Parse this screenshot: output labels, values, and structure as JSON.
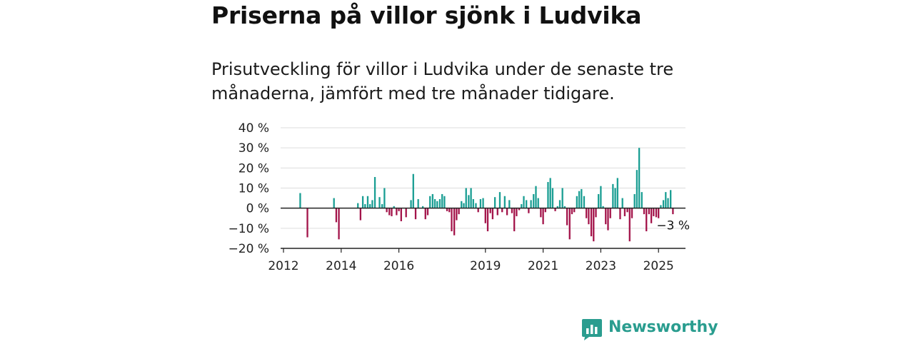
{
  "chart_data": {
    "type": "bar",
    "title": "Priserna på villor sjönk i Ludvika",
    "subtitle": "Prisutveckling för villor i Ludvika under de senaste tre månaderna, jämfört med tre månader tidigare.",
    "xlabel": "",
    "ylabel": "",
    "ylim": [
      -20,
      40
    ],
    "yticks": [
      40,
      30,
      20,
      10,
      0,
      -10,
      -20
    ],
    "ytick_labels": [
      "40 %",
      "30 %",
      "20 %",
      "10 %",
      "0 %",
      "−10 %",
      "−20 %"
    ],
    "xticks": [
      2012,
      2014,
      2016,
      2019,
      2021,
      2023,
      2025
    ],
    "xtick_labels": [
      "2012",
      "2014",
      "2016",
      "2019",
      "2021",
      "2023",
      "2025"
    ],
    "grid": true,
    "legend": "none",
    "colors": {
      "positive": "#1a9e93",
      "negative": "#a3144a"
    },
    "end_label": "−3 %",
    "values": [
      [
        2012.58,
        7.5
      ],
      [
        2012.83,
        -14.5
      ],
      [
        2013.75,
        5
      ],
      [
        2013.83,
        -7
      ],
      [
        2013.92,
        -15.5
      ],
      [
        2014.58,
        2.5
      ],
      [
        2014.67,
        -6
      ],
      [
        2014.75,
        6
      ],
      [
        2014.83,
        2
      ],
      [
        2014.92,
        6
      ],
      [
        2015.0,
        2
      ],
      [
        2015.08,
        4
      ],
      [
        2015.17,
        15.5
      ],
      [
        2015.33,
        5.5
      ],
      [
        2015.42,
        2
      ],
      [
        2015.5,
        10
      ],
      [
        2015.58,
        -2
      ],
      [
        2015.67,
        -3.5
      ],
      [
        2015.75,
        -4
      ],
      [
        2015.83,
        1
      ],
      [
        2015.92,
        -3.5
      ],
      [
        2016.0,
        -1.5
      ],
      [
        2016.08,
        -6.5
      ],
      [
        2016.25,
        -4.5
      ],
      [
        2016.42,
        4
      ],
      [
        2016.5,
        17
      ],
      [
        2016.58,
        -5.5
      ],
      [
        2016.67,
        4.5
      ],
      [
        2016.83,
        1
      ],
      [
        2016.92,
        -5.5
      ],
      [
        2017.0,
        -3.5
      ],
      [
        2017.08,
        6
      ],
      [
        2017.17,
        7
      ],
      [
        2017.25,
        4.5
      ],
      [
        2017.33,
        3.5
      ],
      [
        2017.42,
        4.5
      ],
      [
        2017.5,
        7
      ],
      [
        2017.58,
        6
      ],
      [
        2017.67,
        -1.5
      ],
      [
        2017.75,
        -2
      ],
      [
        2017.83,
        -11.5
      ],
      [
        2017.92,
        -13.5
      ],
      [
        2018.0,
        -6
      ],
      [
        2018.08,
        -3
      ],
      [
        2018.17,
        3.5
      ],
      [
        2018.25,
        2.5
      ],
      [
        2018.33,
        10
      ],
      [
        2018.42,
        6.5
      ],
      [
        2018.5,
        10
      ],
      [
        2018.58,
        4.5
      ],
      [
        2018.67,
        2.5
      ],
      [
        2018.75,
        -2
      ],
      [
        2018.83,
        4.5
      ],
      [
        2018.92,
        5
      ],
      [
        2019.0,
        -7.5
      ],
      [
        2019.08,
        -11.5
      ],
      [
        2019.17,
        -2.5
      ],
      [
        2019.25,
        -5.5
      ],
      [
        2019.33,
        5.5
      ],
      [
        2019.42,
        -3.5
      ],
      [
        2019.5,
        8
      ],
      [
        2019.58,
        -2
      ],
      [
        2019.67,
        6
      ],
      [
        2019.75,
        -3.5
      ],
      [
        2019.83,
        4
      ],
      [
        2019.92,
        -2.5
      ],
      [
        2020.0,
        -11.5
      ],
      [
        2020.08,
        -4
      ],
      [
        2020.17,
        -1
      ],
      [
        2020.25,
        2
      ],
      [
        2020.33,
        6
      ],
      [
        2020.42,
        4
      ],
      [
        2020.5,
        -2.5
      ],
      [
        2020.58,
        4
      ],
      [
        2020.67,
        7
      ],
      [
        2020.75,
        11
      ],
      [
        2020.83,
        5
      ],
      [
        2020.92,
        -4.5
      ],
      [
        2021.0,
        -8
      ],
      [
        2021.08,
        -2
      ],
      [
        2021.17,
        13
      ],
      [
        2021.25,
        15
      ],
      [
        2021.33,
        10
      ],
      [
        2021.42,
        -1.5
      ],
      [
        2021.5,
        1
      ],
      [
        2021.58,
        4
      ],
      [
        2021.67,
        10
      ],
      [
        2021.75,
        1
      ],
      [
        2021.83,
        -8.5
      ],
      [
        2021.92,
        -15.5
      ],
      [
        2022.0,
        -3
      ],
      [
        2022.08,
        -2
      ],
      [
        2022.17,
        6
      ],
      [
        2022.25,
        8.5
      ],
      [
        2022.33,
        9.5
      ],
      [
        2022.42,
        6
      ],
      [
        2022.5,
        -5
      ],
      [
        2022.58,
        -8
      ],
      [
        2022.67,
        -14
      ],
      [
        2022.75,
        -16.5
      ],
      [
        2022.83,
        -4.5
      ],
      [
        2022.92,
        7
      ],
      [
        2023.0,
        11
      ],
      [
        2023.08,
        1
      ],
      [
        2023.17,
        -8
      ],
      [
        2023.25,
        -11
      ],
      [
        2023.33,
        -5
      ],
      [
        2023.42,
        12
      ],
      [
        2023.5,
        10
      ],
      [
        2023.58,
        15
      ],
      [
        2023.67,
        -5.5
      ],
      [
        2023.75,
        5
      ],
      [
        2023.83,
        -4
      ],
      [
        2023.92,
        -2
      ],
      [
        2024.0,
        -16.5
      ],
      [
        2024.08,
        -5
      ],
      [
        2024.17,
        7
      ],
      [
        2024.25,
        19
      ],
      [
        2024.33,
        30
      ],
      [
        2024.42,
        8
      ],
      [
        2024.5,
        -3
      ],
      [
        2024.58,
        -11.5
      ],
      [
        2024.67,
        -3
      ],
      [
        2024.75,
        -7.5
      ],
      [
        2024.83,
        -4
      ],
      [
        2024.92,
        -4.5
      ],
      [
        2025.0,
        -5
      ],
      [
        2025.08,
        1.5
      ],
      [
        2025.17,
        4
      ],
      [
        2025.25,
        8
      ],
      [
        2025.33,
        5
      ],
      [
        2025.42,
        9
      ],
      [
        2025.5,
        -3
      ]
    ]
  },
  "brand": {
    "name": "Newsworthy"
  }
}
